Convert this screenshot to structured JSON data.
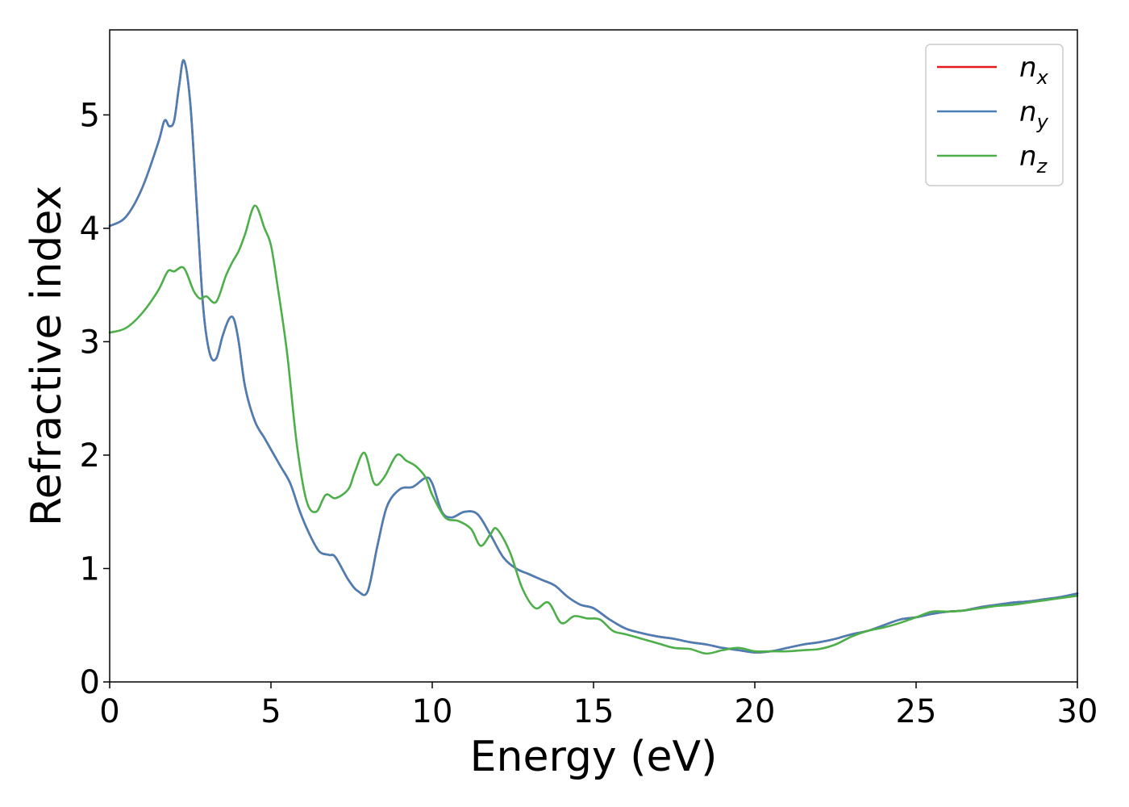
{
  "chart_data": {
    "type": "line",
    "title": "",
    "xlabel": "Energy (eV)",
    "ylabel": "Refractive index",
    "xlim": [
      0,
      30
    ],
    "ylim": [
      0,
      5.75
    ],
    "xticks": [
      0,
      5,
      10,
      15,
      20,
      25,
      30
    ],
    "yticks": [
      0,
      1,
      2,
      3,
      4,
      5
    ],
    "grid": false,
    "legend_position": "top-right",
    "series": [
      {
        "name": "n_x",
        "legend_base": "n",
        "legend_sub": "x",
        "color": "#e41a1c",
        "x": [
          0,
          0.5,
          1.0,
          1.5,
          1.7,
          1.85,
          2.0,
          2.15,
          2.3,
          2.5,
          2.7,
          2.9,
          3.1,
          3.3,
          3.5,
          3.7,
          3.85,
          4.0,
          4.2,
          4.5,
          4.8,
          5.0,
          5.3,
          5.6,
          5.9,
          6.2,
          6.5,
          6.8,
          7.0,
          7.4,
          7.7,
          8.0,
          8.3,
          8.6,
          9.0,
          9.4,
          9.8,
          10.0,
          10.3,
          10.6,
          11.0,
          11.4,
          11.8,
          12.2,
          12.6,
          13.0,
          13.4,
          13.8,
          14.2,
          14.6,
          15.0,
          15.5,
          16.0,
          16.5,
          17.0,
          17.5,
          18.0,
          18.5,
          19.0,
          19.5,
          20.0,
          20.5,
          21.0,
          21.5,
          22.0,
          22.5,
          23.0,
          23.5,
          24.0,
          24.5,
          25.0,
          25.5,
          26.0,
          26.5,
          27.0,
          27.5,
          28.0,
          28.5,
          29.0,
          29.5,
          30.0
        ],
        "y": [
          4.02,
          4.1,
          4.35,
          4.75,
          4.95,
          4.9,
          4.95,
          5.25,
          5.48,
          5.1,
          4.2,
          3.3,
          2.9,
          2.85,
          3.05,
          3.2,
          3.2,
          3.0,
          2.6,
          2.3,
          2.15,
          2.05,
          1.9,
          1.75,
          1.5,
          1.3,
          1.15,
          1.12,
          1.1,
          0.9,
          0.8,
          0.8,
          1.2,
          1.55,
          1.7,
          1.72,
          1.8,
          1.75,
          1.5,
          1.45,
          1.5,
          1.48,
          1.3,
          1.1,
          1.0,
          0.95,
          0.9,
          0.85,
          0.75,
          0.68,
          0.65,
          0.55,
          0.47,
          0.43,
          0.4,
          0.38,
          0.35,
          0.33,
          0.3,
          0.28,
          0.26,
          0.27,
          0.3,
          0.33,
          0.35,
          0.38,
          0.42,
          0.45,
          0.5,
          0.55,
          0.57,
          0.6,
          0.62,
          0.63,
          0.66,
          0.68,
          0.7,
          0.71,
          0.73,
          0.75,
          0.78
        ]
      },
      {
        "name": "n_y",
        "legend_base": "n",
        "legend_sub": "y",
        "color": "#4a7fb6",
        "x": [
          0,
          0.5,
          1.0,
          1.5,
          1.7,
          1.85,
          2.0,
          2.15,
          2.3,
          2.5,
          2.7,
          2.9,
          3.1,
          3.3,
          3.5,
          3.7,
          3.85,
          4.0,
          4.2,
          4.5,
          4.8,
          5.0,
          5.3,
          5.6,
          5.9,
          6.2,
          6.5,
          6.8,
          7.0,
          7.4,
          7.7,
          8.0,
          8.3,
          8.6,
          9.0,
          9.4,
          9.8,
          10.0,
          10.3,
          10.6,
          11.0,
          11.4,
          11.8,
          12.2,
          12.6,
          13.0,
          13.4,
          13.8,
          14.2,
          14.6,
          15.0,
          15.5,
          16.0,
          16.5,
          17.0,
          17.5,
          18.0,
          18.5,
          19.0,
          19.5,
          20.0,
          20.5,
          21.0,
          21.5,
          22.0,
          22.5,
          23.0,
          23.5,
          24.0,
          24.5,
          25.0,
          25.5,
          26.0,
          26.5,
          27.0,
          27.5,
          28.0,
          28.5,
          29.0,
          29.5,
          30.0
        ],
        "y": [
          4.02,
          4.1,
          4.35,
          4.75,
          4.95,
          4.9,
          4.95,
          5.25,
          5.48,
          5.1,
          4.2,
          3.3,
          2.9,
          2.85,
          3.05,
          3.2,
          3.2,
          3.0,
          2.6,
          2.3,
          2.15,
          2.05,
          1.9,
          1.75,
          1.5,
          1.3,
          1.15,
          1.12,
          1.1,
          0.9,
          0.8,
          0.8,
          1.2,
          1.55,
          1.7,
          1.72,
          1.8,
          1.75,
          1.5,
          1.45,
          1.5,
          1.48,
          1.3,
          1.1,
          1.0,
          0.95,
          0.9,
          0.85,
          0.75,
          0.68,
          0.65,
          0.55,
          0.47,
          0.43,
          0.4,
          0.38,
          0.35,
          0.33,
          0.3,
          0.28,
          0.26,
          0.27,
          0.3,
          0.33,
          0.35,
          0.38,
          0.42,
          0.45,
          0.5,
          0.55,
          0.57,
          0.6,
          0.62,
          0.63,
          0.66,
          0.68,
          0.7,
          0.71,
          0.73,
          0.75,
          0.78
        ]
      },
      {
        "name": "n_z",
        "legend_base": "n",
        "legend_sub": "z",
        "color": "#4daf4a",
        "x": [
          0,
          0.5,
          1.0,
          1.5,
          1.8,
          2.0,
          2.3,
          2.6,
          2.8,
          3.0,
          3.3,
          3.6,
          3.8,
          4.0,
          4.2,
          4.5,
          4.8,
          5.0,
          5.2,
          5.5,
          5.8,
          6.1,
          6.4,
          6.7,
          7.0,
          7.4,
          7.6,
          7.9,
          8.2,
          8.5,
          8.9,
          9.2,
          9.5,
          9.8,
          10.0,
          10.4,
          10.8,
          11.2,
          11.5,
          11.8,
          12.0,
          12.4,
          12.8,
          13.2,
          13.6,
          14.0,
          14.4,
          14.8,
          15.2,
          15.6,
          16.0,
          16.5,
          17.0,
          17.5,
          18.0,
          18.5,
          19.0,
          19.5,
          20.0,
          20.5,
          21.0,
          21.5,
          22.0,
          22.5,
          23.0,
          23.5,
          24.0,
          24.5,
          25.0,
          25.5,
          26.0,
          26.5,
          27.0,
          27.5,
          28.0,
          28.5,
          29.0,
          29.5,
          30.0
        ],
        "y": [
          3.08,
          3.12,
          3.25,
          3.45,
          3.62,
          3.62,
          3.65,
          3.45,
          3.38,
          3.4,
          3.35,
          3.58,
          3.7,
          3.8,
          3.95,
          4.2,
          4.0,
          3.85,
          3.5,
          2.9,
          2.1,
          1.6,
          1.5,
          1.65,
          1.62,
          1.7,
          1.85,
          2.02,
          1.75,
          1.8,
          2.0,
          1.95,
          1.9,
          1.8,
          1.65,
          1.45,
          1.42,
          1.35,
          1.2,
          1.3,
          1.35,
          1.15,
          0.82,
          0.65,
          0.7,
          0.52,
          0.58,
          0.56,
          0.55,
          0.45,
          0.42,
          0.38,
          0.34,
          0.3,
          0.29,
          0.25,
          0.28,
          0.3,
          0.27,
          0.27,
          0.27,
          0.28,
          0.29,
          0.33,
          0.4,
          0.45,
          0.48,
          0.52,
          0.57,
          0.62,
          0.62,
          0.63,
          0.65,
          0.67,
          0.68,
          0.7,
          0.72,
          0.74,
          0.76
        ]
      }
    ]
  }
}
